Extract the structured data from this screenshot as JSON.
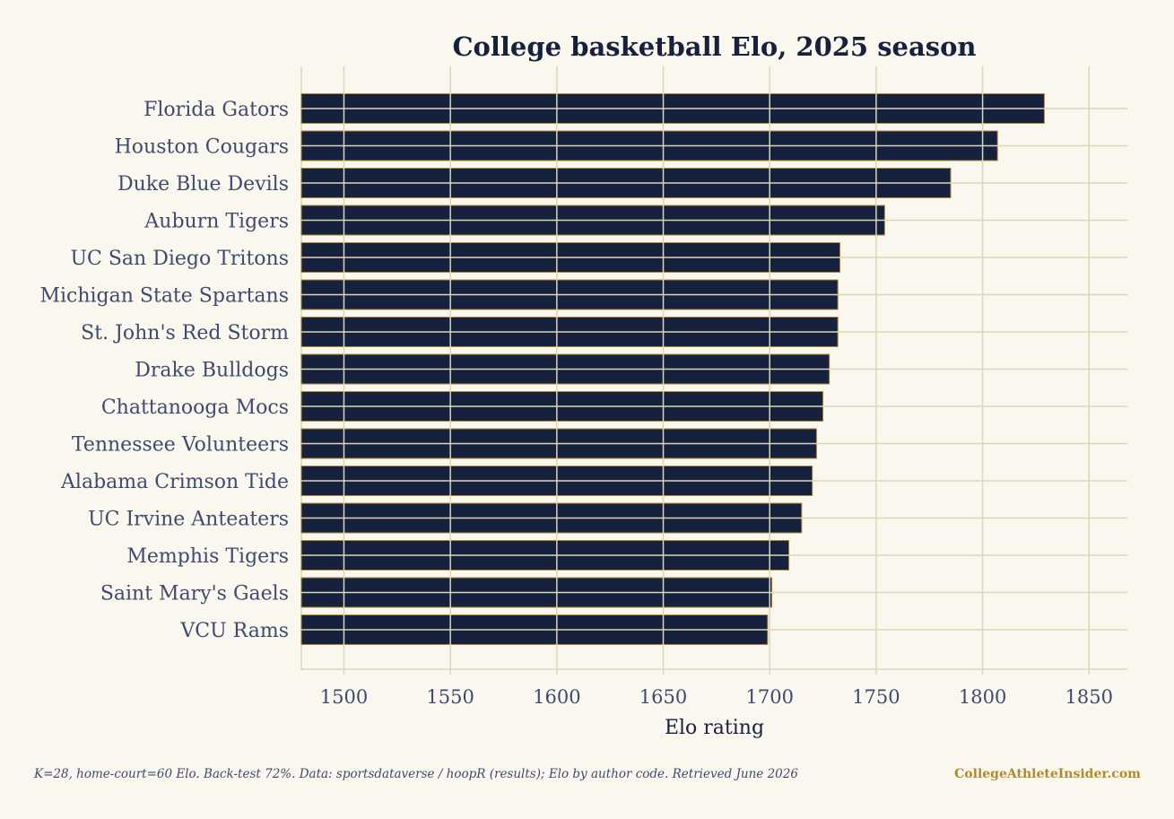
{
  "chart_data": {
    "type": "bar",
    "orientation": "horizontal",
    "title": "College basketball Elo, 2025 season",
    "xlabel": "Elo rating",
    "ylabel": "",
    "xlim": [
      1480,
      1868
    ],
    "xticks": [
      1500,
      1550,
      1600,
      1650,
      1700,
      1750,
      1800,
      1850
    ],
    "grid": true,
    "categories": [
      "Florida Gators",
      "Houston Cougars",
      "Duke Blue Devils",
      "Auburn Tigers",
      "UC San Diego Tritons",
      "Michigan State Spartans",
      "St. John's Red Storm",
      "Drake Bulldogs",
      "Chattanooga Mocs",
      "Tennessee Volunteers",
      "Alabama Crimson Tide",
      "UC Irvine Anteaters",
      "Memphis Tigers",
      "Saint Mary's Gaels",
      "VCU Rams"
    ],
    "values": [
      1829,
      1807,
      1785,
      1754,
      1733,
      1732,
      1732,
      1728,
      1725,
      1722,
      1720,
      1715,
      1709,
      1701,
      1699
    ],
    "colors": {
      "bar_fill": "#16213e",
      "bar_edge": "#b08a2e",
      "grid": "#ddd6b8",
      "axis_text": "#3f4a6e",
      "title_text": "#16213e",
      "background": "#faf7ee"
    }
  },
  "footer": {
    "note": "K=28, home-court=60 Elo. Back-test 72%.  Data: sportsdataverse / hoopR (results); Elo by author code. Retrieved June 2026",
    "brand": "CollegeAthleteInsider.com"
  }
}
